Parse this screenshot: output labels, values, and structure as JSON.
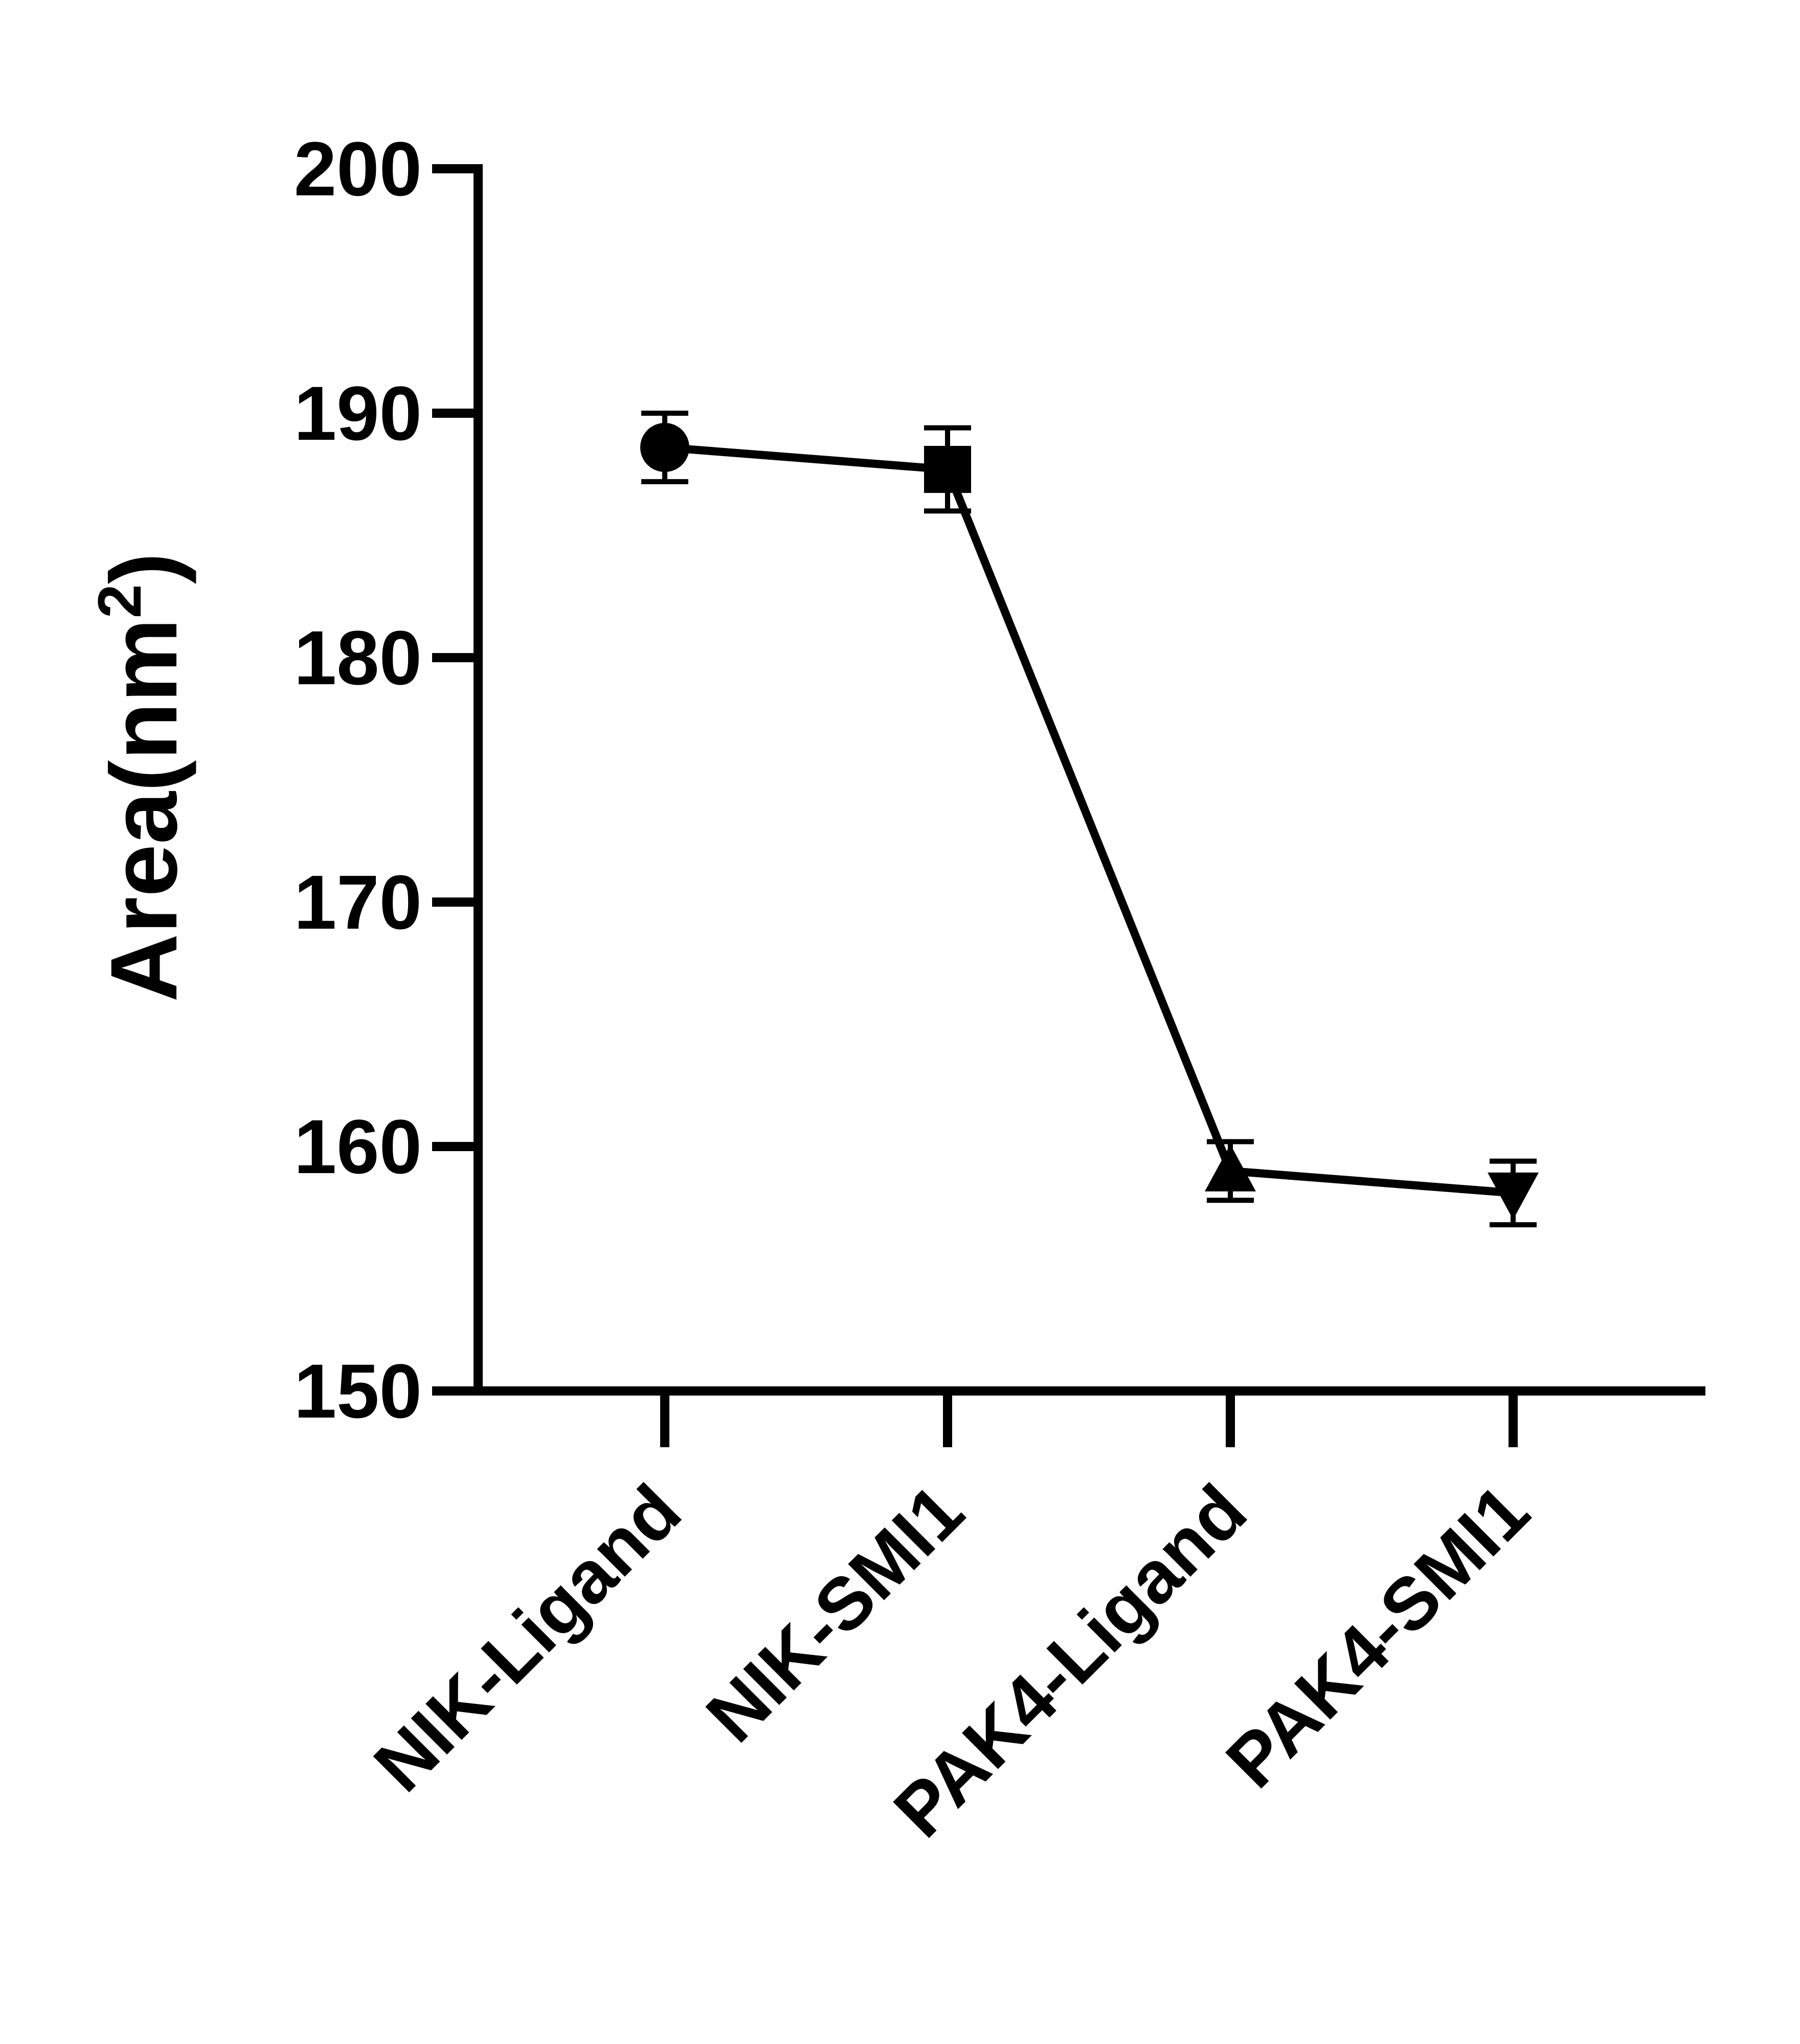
{
  "chart_data": {
    "type": "line",
    "title": "",
    "xlabel": "",
    "ylabel": "Area(nm",
    "ylabel_superscript": "2",
    "ylabel_suffix": ")",
    "ylim": [
      150,
      200
    ],
    "yticks": [
      "150",
      "160",
      "170",
      "180",
      "190",
      "200"
    ],
    "grid": false,
    "legend": "none",
    "categories": [
      "NIK-Ligand",
      "NIK-SMI1",
      "PAK4-Ligand",
      "PAK4-SMI1"
    ],
    "series": [
      {
        "values": [
          188.6,
          187.7,
          159.0,
          158.1
        ],
        "error": [
          1.4,
          1.7,
          1.2,
          1.3
        ],
        "markers": [
          "circle",
          "square",
          "triangle-up",
          "triangle-down"
        ],
        "color": "#000000"
      }
    ]
  }
}
